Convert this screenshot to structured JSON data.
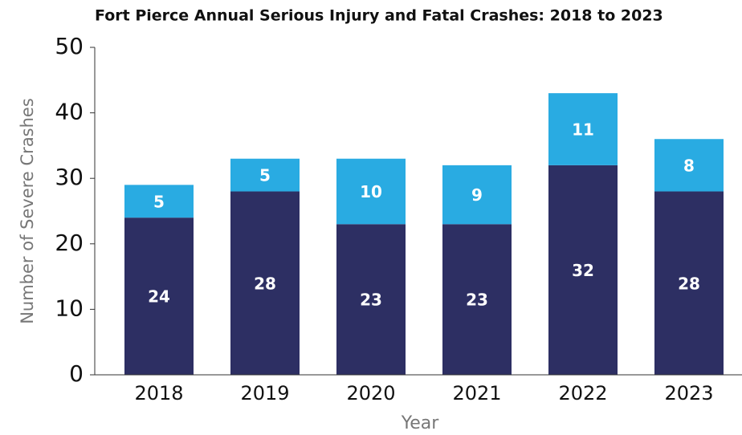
{
  "chart_data": {
    "type": "stacked_bar",
    "title": "Fort Pierce Annual Serious Injury and Fatal Crashes: 2018 to 2023",
    "x_label": "Year",
    "y_label": "Number of Severe Crashes",
    "categories": [
      "2018",
      "2019",
      "2020",
      "2021",
      "2022",
      "2023"
    ],
    "series": [
      {
        "color": "#2d2f63",
        "values": [
          24,
          28,
          23,
          23,
          32,
          28
        ]
      },
      {
        "color": "#29abe2",
        "values": [
          5,
          5,
          10,
          9,
          11,
          8
        ]
      }
    ],
    "ylim": [
      0,
      50
    ],
    "yticks": [
      0,
      10,
      20,
      30,
      40,
      50
    ]
  }
}
